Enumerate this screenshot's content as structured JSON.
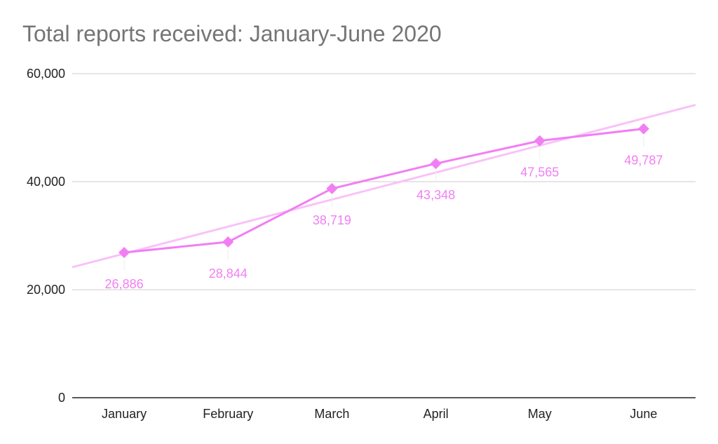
{
  "chart_data": {
    "type": "line",
    "title": "Total reports received: January-June 2020",
    "categories": [
      "January",
      "February",
      "March",
      "April",
      "May",
      "June"
    ],
    "series": [
      {
        "values": [
          26886,
          28844,
          38719,
          43348,
          47565,
          49787
        ],
        "data_labels": [
          "26,886",
          "28,844",
          "38,719",
          "43,348",
          "47,565",
          "49,787"
        ],
        "color": "#f27ef4",
        "marker": "diamond",
        "trendline": "linear"
      }
    ],
    "trendline_color": "#f9c2f8",
    "ylim": [
      0,
      60000
    ],
    "yticks": [
      0,
      20000,
      40000,
      60000
    ],
    "ytick_labels": [
      "0",
      "20,000",
      "40,000",
      "60,000"
    ],
    "grid": true,
    "legend": "none",
    "axis_color": "#222222",
    "grid_color": "#cccccc"
  }
}
